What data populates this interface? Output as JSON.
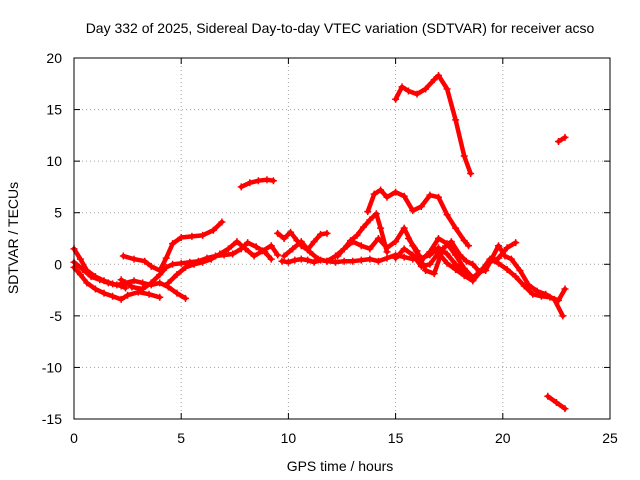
{
  "chart_data": {
    "type": "scatter",
    "title": "Day 332 of 2025, Sidereal Day-to-day VTEC variation (SDTVAR) for receiver acso",
    "xlabel": "GPS time / hours",
    "ylabel": "SDTVAR / TECUs",
    "xlim": [
      0,
      25
    ],
    "ylim": [
      -15,
      20
    ],
    "xticks": [
      "0",
      "5",
      "10",
      "15",
      "20",
      "25"
    ],
    "yticks": [
      "20",
      "15",
      "10",
      "5",
      "0",
      "-5",
      "-10",
      "-15"
    ],
    "grid": true,
    "legend": "none",
    "series_color": "#ff0000",
    "series": [
      {
        "name": "s1",
        "x": [
          0,
          0.3,
          0.6,
          1.0,
          1.4,
          1.8,
          2.2,
          2.4
        ],
        "y": [
          1.5,
          0.5,
          -0.6,
          -1.2,
          -1.6,
          -1.9,
          -2.1,
          -2.3
        ]
      },
      {
        "name": "s2",
        "x": [
          0,
          0.3,
          0.6,
          1.0,
          1.4,
          1.8,
          2.2,
          2.5,
          3.0,
          3.5,
          4.0
        ],
        "y": [
          -0.3,
          -1.0,
          -1.8,
          -2.4,
          -2.8,
          -3.1,
          -3.4,
          -3.0,
          -2.7,
          -2.9,
          -3.2
        ]
      },
      {
        "name": "s3",
        "x": [
          0,
          0.4,
          0.8,
          1.2,
          1.6,
          2.0,
          2.4,
          2.8,
          3.2,
          3.6,
          4.0,
          4.4,
          4.8,
          5.2
        ],
        "y": [
          0.2,
          -0.5,
          -1.2,
          -1.5,
          -1.8,
          -2.0,
          -1.8,
          -1.6,
          -1.8,
          -2.0,
          -1.8,
          -2.2,
          -2.8,
          -3.3
        ]
      },
      {
        "name": "s4",
        "x": [
          2.3,
          2.8,
          3.3,
          3.6,
          4.0,
          4.3,
          4.6,
          5.0,
          5.5,
          6.0,
          6.5,
          6.9
        ],
        "y": [
          0.8,
          0.5,
          0.3,
          -0.2,
          -0.6,
          0.6,
          2.0,
          2.6,
          2.7,
          2.8,
          3.3,
          4.1
        ]
      },
      {
        "name": "s5",
        "x": [
          2.2,
          2.7,
          3.2,
          3.6,
          4.0,
          4.3,
          4.6,
          5.0,
          5.4,
          5.8,
          6.2,
          6.6,
          7.0,
          7.4,
          7.8,
          8.1,
          8.5,
          8.9,
          9.2
        ],
        "y": [
          -1.5,
          -2.2,
          -2.4,
          -1.8,
          -1.0,
          -0.3,
          0.0,
          0.1,
          0.2,
          0.3,
          0.6,
          0.8,
          0.9,
          1.0,
          1.5,
          2.1,
          1.7,
          1.2,
          0.5
        ]
      },
      {
        "name": "s6",
        "x": [
          4.4,
          4.8,
          5.2,
          5.6,
          6.0,
          6.4,
          6.8,
          7.2,
          7.6,
          8.0,
          8.4,
          8.8,
          9.2,
          9.5
        ],
        "y": [
          -1.8,
          -1.0,
          -0.3,
          0.0,
          0.2,
          0.5,
          1.0,
          1.5,
          2.2,
          1.5,
          0.8,
          1.3,
          1.8,
          0.9
        ]
      },
      {
        "name": "s7",
        "x": [
          7.8,
          8.2,
          8.6,
          9.0,
          9.3
        ],
        "y": [
          7.5,
          7.9,
          8.1,
          8.2,
          8.1
        ]
      },
      {
        "name": "s8",
        "x": [
          9.7,
          10.0,
          10.3,
          10.6,
          10.9,
          11.2,
          11.5,
          11.8,
          12.2,
          12.6,
          13.0,
          13.4,
          13.8,
          14.2,
          14.6,
          15.0,
          15.4,
          15.8,
          16.2,
          16.6,
          17.0,
          17.4,
          17.8,
          18.2,
          18.6
        ],
        "y": [
          0.3,
          0.2,
          0.4,
          0.5,
          0.4,
          0.2,
          0.4,
          0.3,
          0.2,
          0.3,
          0.3,
          0.4,
          0.5,
          0.3,
          0.6,
          0.9,
          0.7,
          0.5,
          0.6,
          0.9,
          1.6,
          1.0,
          0.0,
          -0.8,
          -1.6
        ]
      },
      {
        "name": "s9",
        "x": [
          9.8,
          10.2,
          10.6,
          11.0,
          11.4,
          11.8,
          12.2,
          12.6,
          13.0,
          13.4,
          13.8,
          14.2,
          14.6,
          15.0,
          15.4,
          15.8,
          16.2,
          16.6,
          17.0,
          17.4,
          17.8,
          18.2,
          18.6,
          19.0,
          19.4,
          19.8,
          20.2,
          20.6
        ],
        "y": [
          0.8,
          1.5,
          2.2,
          1.2,
          0.5,
          0.3,
          0.8,
          1.5,
          2.2,
          1.8,
          1.5,
          2.5,
          1.6,
          2.2,
          3.5,
          1.8,
          0.4,
          1.2,
          2.5,
          2.0,
          0.9,
          -0.4,
          -1.3,
          -0.6,
          0.2,
          0.6,
          1.6,
          2.1
        ]
      },
      {
        "name": "s10",
        "x": [
          9.5,
          9.8,
          10.1,
          10.4,
          10.6,
          10.9,
          11.2,
          11.5,
          11.8
        ],
        "y": [
          3.0,
          2.5,
          3.1,
          2.3,
          1.8,
          1.4,
          2.2,
          2.9,
          3.0
        ]
      },
      {
        "name": "s11",
        "x": [
          12.3,
          12.6,
          12.9,
          13.2,
          13.5,
          13.8,
          14.1,
          14.3,
          14.6
        ],
        "y": [
          0.8,
          1.5,
          2.3,
          2.8,
          3.6,
          4.3,
          4.9,
          3.5,
          1.2
        ]
      },
      {
        "name": "s12",
        "x": [
          13.7,
          14.0,
          14.3,
          14.6,
          15.0,
          15.4,
          15.8,
          16.2,
          16.6,
          17.0,
          17.4,
          17.8,
          18.2,
          18.4
        ],
        "y": [
          5.1,
          6.8,
          7.2,
          6.5,
          7.0,
          6.6,
          5.2,
          5.6,
          6.7,
          6.5,
          4.8,
          3.5,
          2.3,
          1.8
        ]
      },
      {
        "name": "s13",
        "x": [
          15.0,
          15.4,
          15.8,
          16.2,
          16.6,
          17.0,
          17.4,
          17.8,
          18.2,
          18.6,
          19.0,
          19.4,
          19.8,
          20.2,
          20.6,
          21.0,
          21.4,
          21.8,
          22.2,
          22.6,
          22.9
        ],
        "y": [
          0.6,
          1.5,
          0.9,
          -0.2,
          0.0,
          1.1,
          0.1,
          -0.5,
          -1.1,
          -1.6,
          -0.6,
          0.5,
          0.1,
          -0.5,
          -1.2,
          -2.1,
          -2.9,
          -3.1,
          -3.2,
          -3.5,
          -2.4
        ]
      },
      {
        "name": "s14",
        "x": [
          15.6,
          16.0,
          16.4,
          16.8,
          17.2,
          17.6,
          18.0,
          18.3,
          18.6,
          18.9,
          19.2,
          19.5,
          19.8,
          20.1,
          20.4,
          20.8,
          21.2,
          21.6,
          22.0,
          22.4,
          22.8
        ],
        "y": [
          2.5,
          1.3,
          -0.6,
          -0.9,
          1.5,
          2.2,
          0.9,
          0.3,
          0.0,
          -0.7,
          -0.6,
          0.6,
          1.8,
          0.8,
          0.5,
          -0.6,
          -2.0,
          -2.6,
          -2.9,
          -3.4,
          -5.0
        ]
      },
      {
        "name": "s15",
        "x": [
          15.0,
          15.3,
          15.6,
          16.0,
          16.4,
          16.8,
          17.0,
          17.4,
          17.8,
          18.2,
          18.5
        ],
        "y": [
          16.0,
          17.2,
          16.8,
          16.5,
          17.0,
          17.9,
          18.3,
          17.0,
          14.0,
          10.5,
          8.8
        ]
      },
      {
        "name": "s16",
        "x": [
          22.6,
          22.9
        ],
        "y": [
          11.9,
          12.3
        ]
      },
      {
        "name": "s17",
        "x": [
          22.1,
          22.5,
          22.9
        ],
        "y": [
          -12.8,
          -13.4,
          -14.0
        ]
      }
    ]
  }
}
